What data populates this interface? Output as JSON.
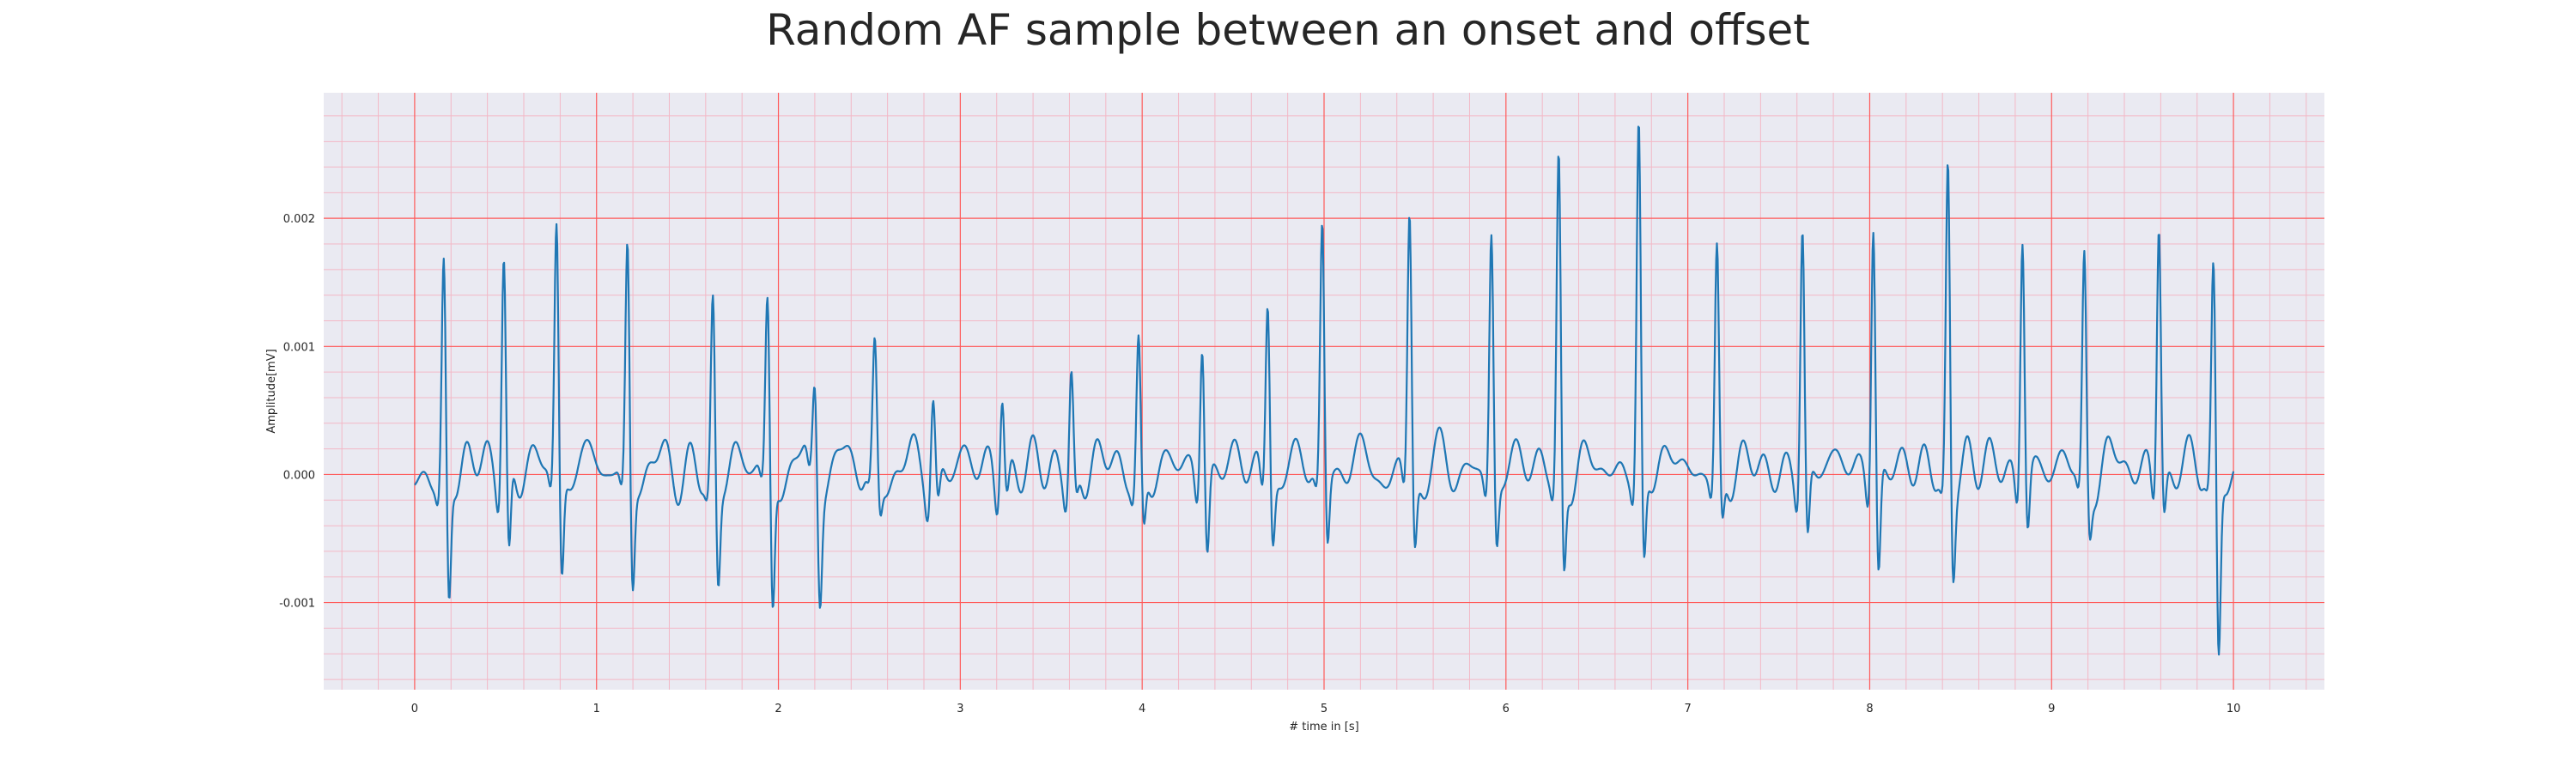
{
  "chart_data": {
    "type": "line",
    "title": "Random AF sample between an onset and offset",
    "xlabel": "# time in [s]",
    "ylabel": "Amplitude[mV]",
    "xlim": [
      -0.5,
      10.5
    ],
    "ylim": [
      -0.00168,
      0.00298
    ],
    "xticks": [
      "0",
      "1",
      "2",
      "3",
      "4",
      "5",
      "6",
      "7",
      "8",
      "9",
      "10"
    ],
    "yticks": [
      "0.002",
      "0.001",
      "0.000",
      "-0.001"
    ],
    "ytick_values": [
      0.002,
      0.001,
      0.0,
      -0.001
    ],
    "grid": true,
    "minor_grid": true,
    "colors": {
      "line": "#1f77b4",
      "plot_background": "#eaeaf2",
      "major_grid": "#ff5a5a",
      "minor_grid": "#f3b8c6"
    },
    "series": [
      {
        "beats": [
          {
            "t": 0.16,
            "a": 0.00168,
            "s": -0.001
          },
          {
            "t": 0.49,
            "a": 0.00176,
            "s": -0.00072
          },
          {
            "t": 0.78,
            "a": 0.00196,
            "s": -0.00082
          },
          {
            "t": 1.17,
            "a": 0.0018,
            "s": -0.00086
          },
          {
            "t": 1.64,
            "a": 0.00139,
            "s": -0.00082
          },
          {
            "t": 1.94,
            "a": 0.00129,
            "s": -0.00108
          },
          {
            "t": 2.2,
            "a": 0.00072,
            "s": -0.00084
          },
          {
            "t": 2.53,
            "a": 0.00092,
            "s": -0.0003
          },
          {
            "t": 2.85,
            "a": 0.00068,
            "s": -0.00026
          },
          {
            "t": 3.23,
            "a": 0.00079,
            "s": -0.00018
          },
          {
            "t": 3.61,
            "a": 0.00082,
            "s": -0.00022
          },
          {
            "t": 3.98,
            "a": 0.00101,
            "s": -0.00046
          },
          {
            "t": 4.33,
            "a": 0.00116,
            "s": -0.0006
          },
          {
            "t": 4.69,
            "a": 0.00144,
            "s": -0.00048
          },
          {
            "t": 4.99,
            "a": 0.00196,
            "s": -0.00056
          },
          {
            "t": 5.47,
            "a": 0.00209,
            "s": -0.00056
          },
          {
            "t": 5.92,
            "a": 0.00197,
            "s": -0.00052
          },
          {
            "t": 6.29,
            "a": 0.00249,
            "s": -0.00078
          },
          {
            "t": 6.73,
            "a": 0.00278,
            "s": -0.00074
          },
          {
            "t": 7.16,
            "a": 0.00178,
            "s": -0.0004
          },
          {
            "t": 7.63,
            "a": 0.00204,
            "s": -0.00054
          },
          {
            "t": 8.02,
            "a": 0.00211,
            "s": -0.0008
          },
          {
            "t": 8.43,
            "a": 0.00247,
            "s": -0.00072
          },
          {
            "t": 8.84,
            "a": 0.00203,
            "s": -0.00042
          },
          {
            "t": 9.18,
            "a": 0.00172,
            "s": -0.0004
          },
          {
            "t": 9.59,
            "a": 0.00211,
            "s": -0.00032
          },
          {
            "t": 9.89,
            "a": 0.00156,
            "s": -0.00147
          }
        ]
      }
    ]
  }
}
